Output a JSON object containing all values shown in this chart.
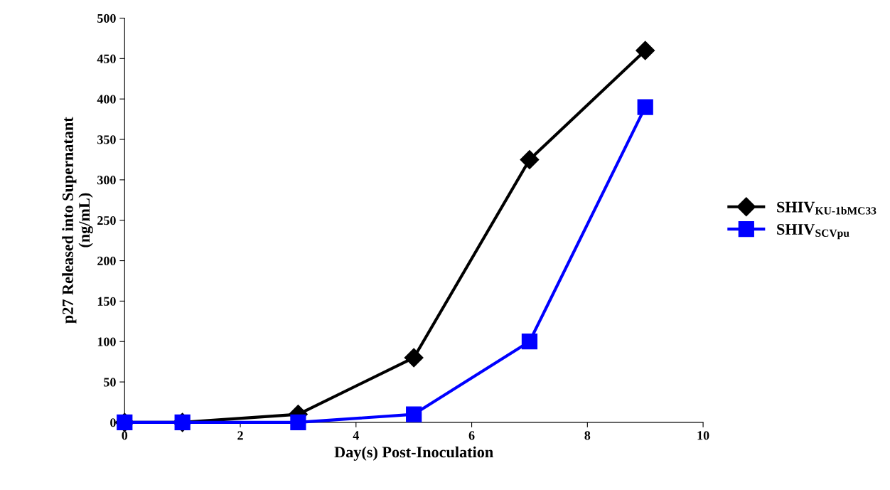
{
  "chart_data": {
    "type": "line",
    "xlabel": "Day(s) Post-Inoculation",
    "ylabel": "p27 Released into Supernatant\n(ng/mL)",
    "x": [
      0,
      1,
      3,
      5,
      7,
      9
    ],
    "series": [
      {
        "name": "SHIV$_{KU-1bMC33}$",
        "color": "#000000",
        "marker": "diamond",
        "values": [
          0,
          0,
          10,
          80,
          325,
          460
        ]
      },
      {
        "name": "SHIV$_{SCVpu}$",
        "color": "#0000ff",
        "marker": "square",
        "values": [
          0,
          0,
          0,
          10,
          100,
          390
        ]
      }
    ],
    "xlim": [
      0,
      10
    ],
    "xticks": [
      0,
      2,
      4,
      6,
      8,
      10
    ],
    "ylim": [
      0,
      500
    ],
    "yticks": [
      0,
      50,
      100,
      150,
      200,
      250,
      300,
      350,
      400,
      450,
      500
    ],
    "grid": false,
    "legend": "right",
    "line_style": "solid"
  }
}
